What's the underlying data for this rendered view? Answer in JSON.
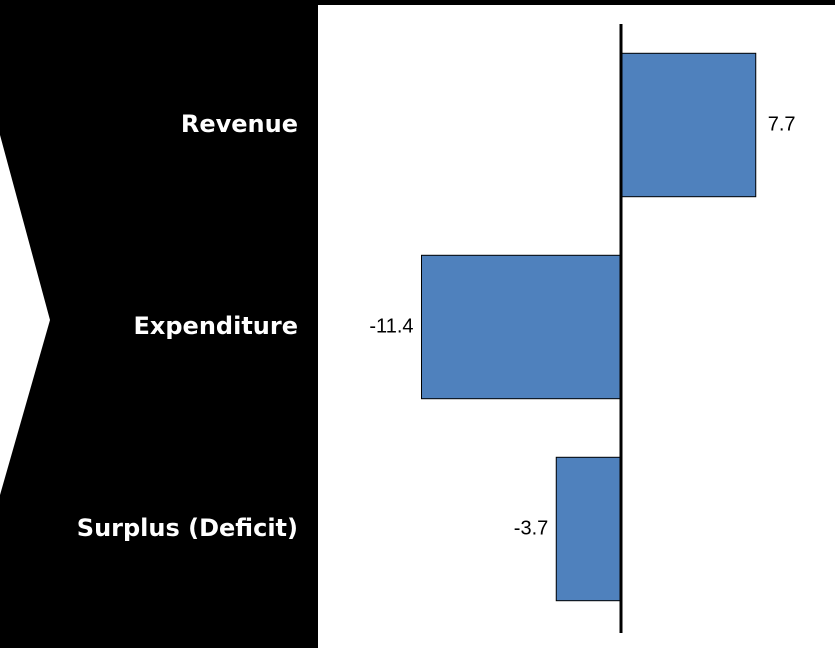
{
  "chart_data": {
    "type": "bar",
    "orientation": "horizontal",
    "categories": [
      "Revenue",
      "Expenditure",
      "Surplus (Deficit)"
    ],
    "values": [
      7.7,
      -11.4,
      -3.7
    ],
    "color": "#4f81bd",
    "xlim": [
      -12,
      12
    ]
  }
}
